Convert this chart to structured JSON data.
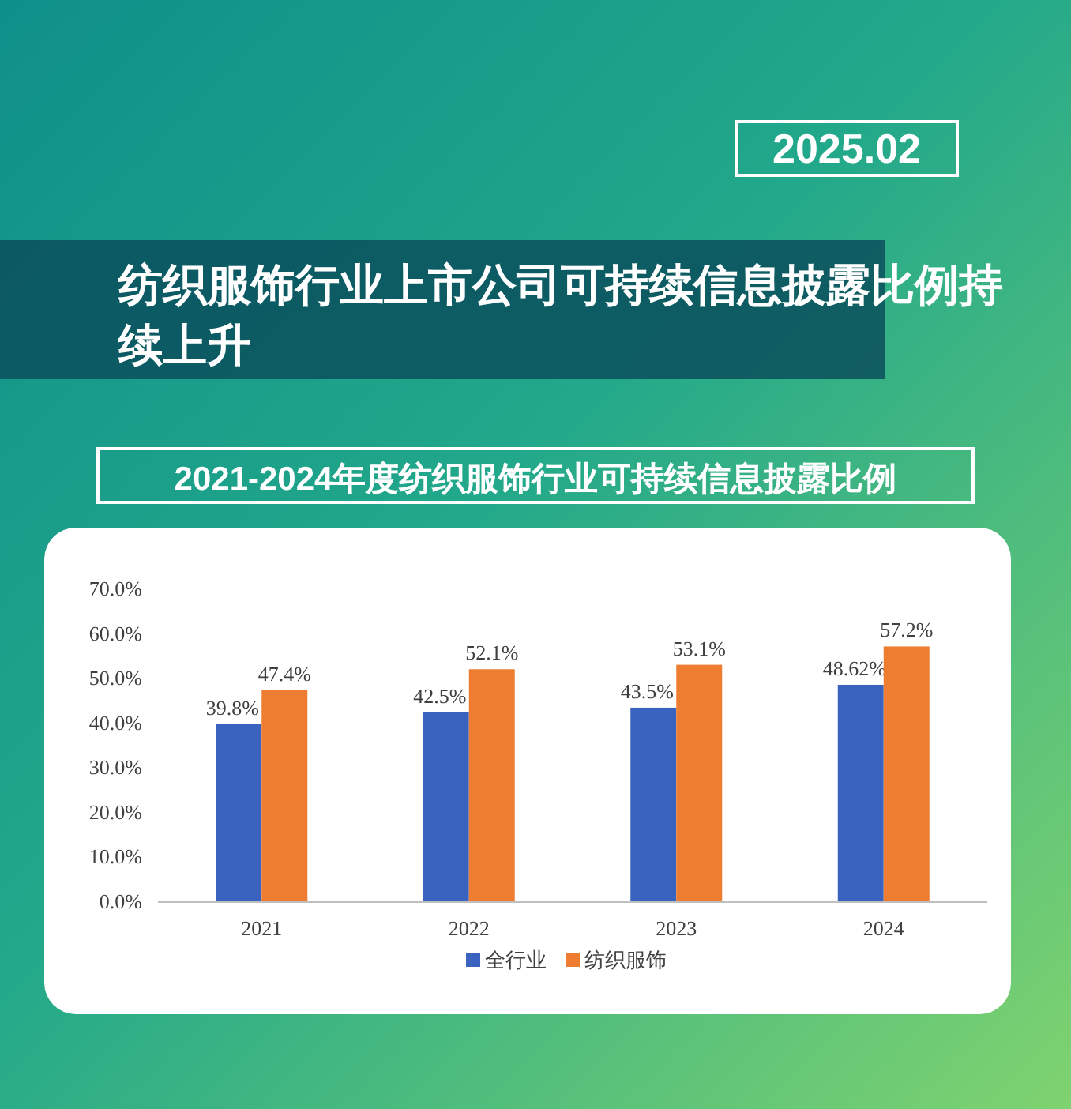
{
  "chart_data": {
    "type": "bar",
    "title": "纺织服饰行业上市公司可持续信息披露比例持续上升",
    "subtitle": "2021-2024年度纺织服饰行业可持续信息披露比例",
    "annotations": [
      "2025.02"
    ],
    "categories": [
      "2021",
      "2022",
      "2023",
      "2024"
    ],
    "series": [
      {
        "name": "全行业",
        "color": "#3a63c0",
        "values": [
          39.8,
          42.5,
          43.5,
          48.62
        ],
        "value_labels": [
          "39.8%",
          "42.5%",
          "43.5%",
          "48.62%"
        ]
      },
      {
        "name": "纺织服饰",
        "color": "#ef7d31",
        "values": [
          47.4,
          52.1,
          53.1,
          57.2
        ],
        "value_labels": [
          "47.4%",
          "52.1%",
          "53.1%",
          "57.2%"
        ]
      }
    ],
    "ylim": [
      0,
      70
    ],
    "yticks": [
      {
        "value": 0,
        "label": "0.0%"
      },
      {
        "value": 10,
        "label": "10.0%"
      },
      {
        "value": 20,
        "label": "20.0%"
      },
      {
        "value": 30,
        "label": "30.0%"
      },
      {
        "value": 40,
        "label": "40.0%"
      },
      {
        "value": 50,
        "label": "50.0%"
      },
      {
        "value": 60,
        "label": "60.0%"
      },
      {
        "value": 70,
        "label": "70.0%"
      }
    ],
    "grid": false,
    "legend": "bottom"
  }
}
